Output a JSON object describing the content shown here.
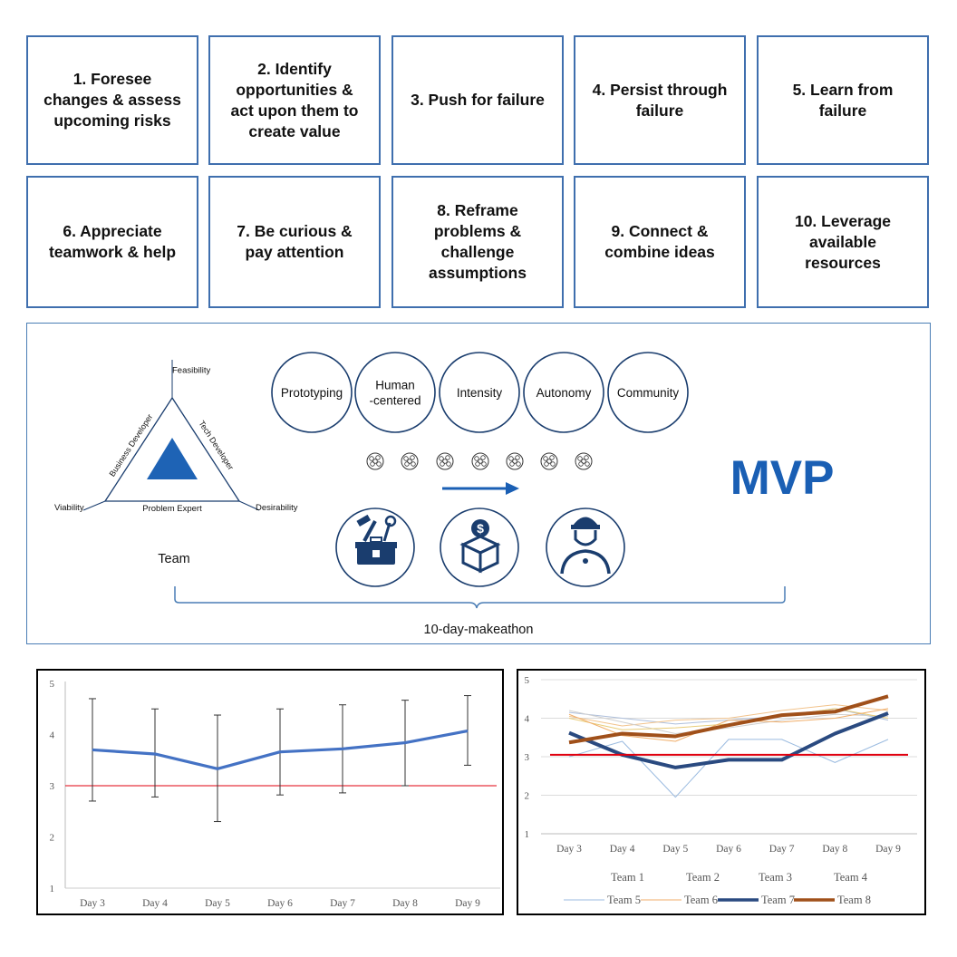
{
  "competencies": [
    "1. Foresee\nchanges & assess\nupcoming risks",
    "2. Identify\nopportunities &\nact upon them to\ncreate value",
    "3. Push for failure",
    "4. Persist through\nfailure",
    "5. Learn from\nfailure",
    "6. Appreciate\nteamwork & help",
    "7. Be curious &\npay attention",
    "8. Reframe\nproblems &\nchallenge\nassumptions",
    "9. Connect &\ncombine ideas",
    "10. Leverage\navailable\nresources"
  ],
  "team_triangle": {
    "vertex_top": "Feasibility",
    "vertex_left": "Viability",
    "vertex_right": "Desirability",
    "edge_left": "Business Developer",
    "edge_right": "Tech Developer",
    "edge_bottom": "Problem Expert",
    "caption": "Team"
  },
  "principles": [
    "Prototyping",
    "Human\n-centered",
    "Intensity",
    "Autonomy",
    "Community"
  ],
  "icons": [
    "toolbox-icon",
    "dollar-box-icon",
    "engineer-icon"
  ],
  "mvp_label": "MVP",
  "mvp_color": "#1a5fb4",
  "makeathon_label": "10-day-makeathon",
  "colors": {
    "border": "#3f6fae",
    "accent": "#1a5fb4",
    "threshold": "#e0000f",
    "team7": "#2a4a80",
    "team8": "#a0501a"
  },
  "chart_data": [
    {
      "type": "line",
      "categories": [
        "Day 3",
        "Day 4",
        "Day 5",
        "Day 6",
        "Day 7",
        "Day 8",
        "Day 9"
      ],
      "values": [
        3.7,
        3.62,
        3.33,
        3.66,
        3.72,
        3.84,
        4.07
      ],
      "error_low": [
        2.7,
        2.78,
        2.3,
        2.82,
        2.86,
        3.0,
        3.4
      ],
      "error_high": [
        4.7,
        4.5,
        4.38,
        4.5,
        4.58,
        4.67,
        4.76
      ],
      "threshold": 3,
      "ylim": [
        1,
        5
      ],
      "yticks": [
        1,
        2,
        3,
        4,
        5
      ],
      "grid": false
    },
    {
      "type": "line",
      "categories": [
        "Day 3",
        "Day 4",
        "Day 5",
        "Day 6",
        "Day 7",
        "Day 8",
        "Day 9"
      ],
      "threshold": 3.05,
      "ylim": [
        1,
        5
      ],
      "yticks": [
        1,
        2,
        3,
        4,
        5
      ],
      "grid": true,
      "legend_position": "bottom",
      "series": [
        {
          "name": "Team 1",
          "values": [
            4.15,
            4.0,
            3.85,
            3.95,
            4.05,
            4.25,
            3.95
          ],
          "color": "#aebfdb",
          "width": 1
        },
        {
          "name": "Team 2",
          "values": [
            4.05,
            3.8,
            3.95,
            4.0,
            4.2,
            4.35,
            4.2
          ],
          "color": "#f2c38c",
          "width": 1
        },
        {
          "name": "Team 3",
          "values": [
            4.2,
            3.9,
            3.6,
            3.75,
            3.95,
            4.1,
            4.05
          ],
          "color": "#cfcfcf",
          "width": 1
        },
        {
          "name": "Team 4",
          "values": [
            4.0,
            3.7,
            3.75,
            3.85,
            4.05,
            4.25,
            4.0
          ],
          "color": "#e8cc77",
          "width": 1
        },
        {
          "name": "Team 5",
          "values": [
            3.0,
            3.4,
            1.95,
            3.45,
            3.45,
            2.85,
            3.45
          ],
          "color": "#9bbbe0",
          "width": 1
        },
        {
          "name": "Team 6",
          "values": [
            4.1,
            3.55,
            3.4,
            3.95,
            3.9,
            4.0,
            4.25
          ],
          "color": "#f0ae6a",
          "width": 1
        },
        {
          "name": "Team 7",
          "values": [
            3.62,
            3.05,
            2.72,
            2.92,
            2.92,
            3.6,
            4.13
          ],
          "color": "#2a4a80",
          "width": 4
        },
        {
          "name": "Team 8",
          "values": [
            3.37,
            3.6,
            3.53,
            3.82,
            4.08,
            4.17,
            4.57
          ],
          "color": "#a0501a",
          "width": 4
        }
      ]
    }
  ]
}
